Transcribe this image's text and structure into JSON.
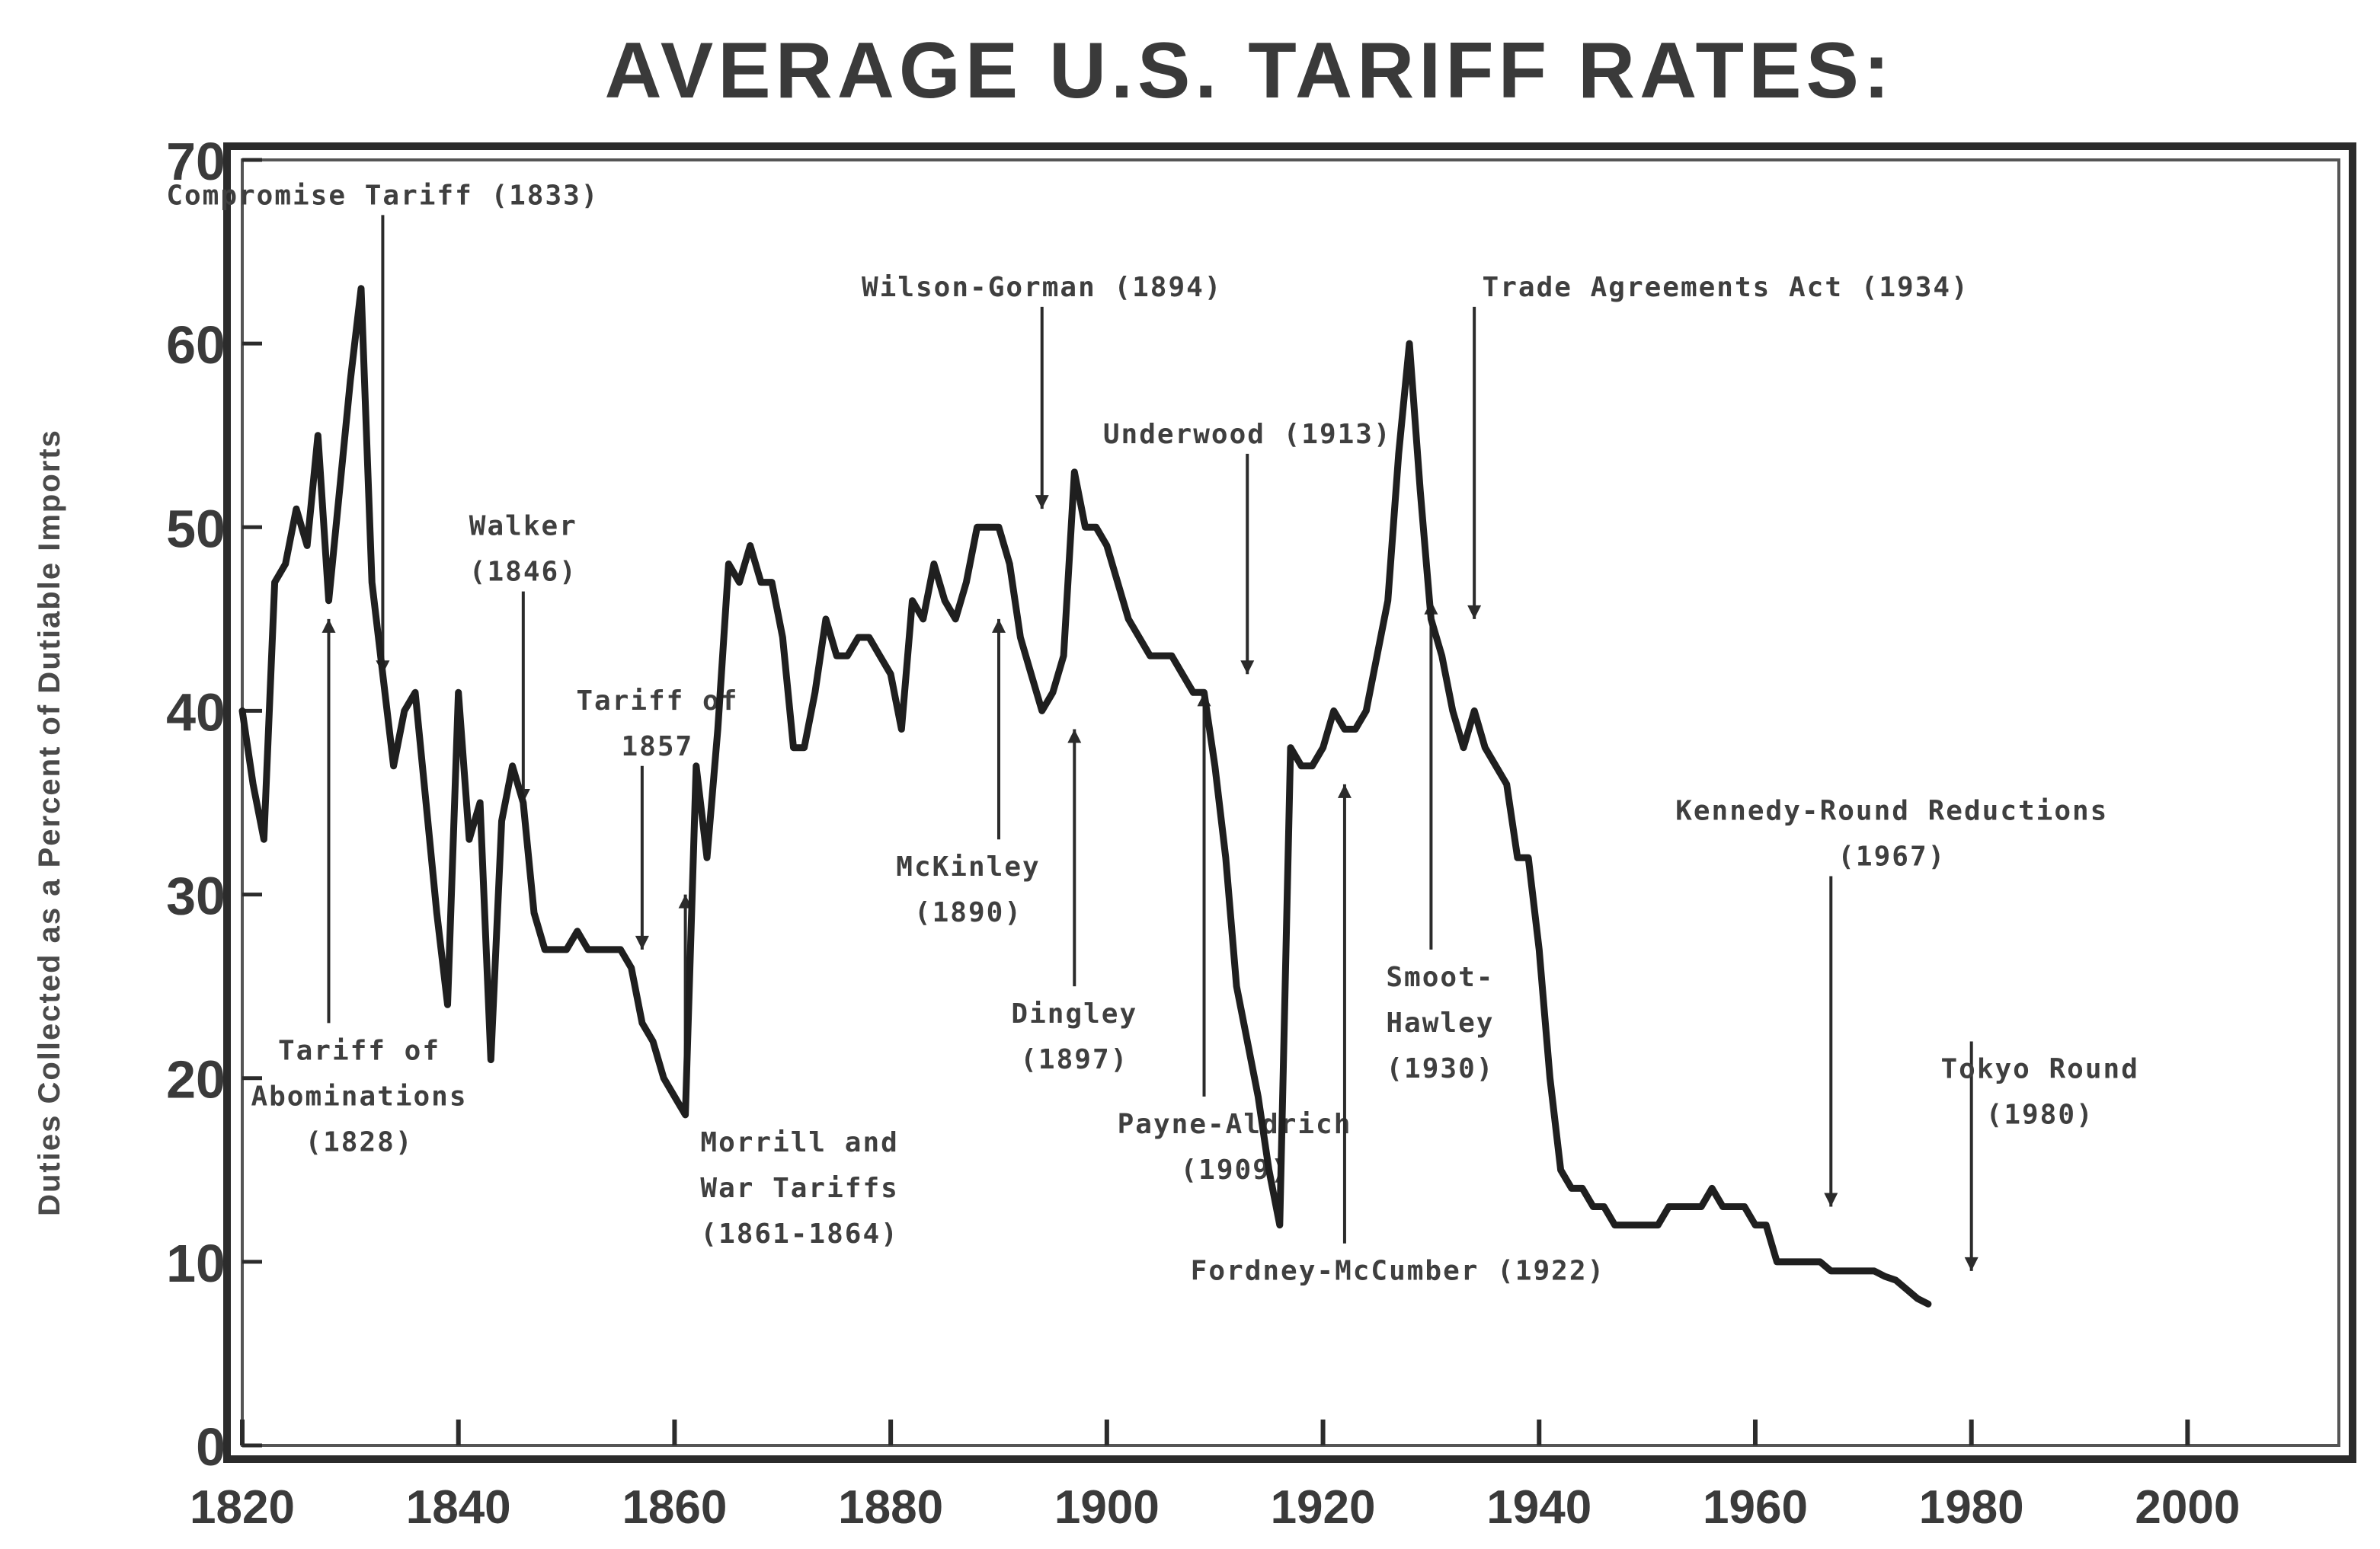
{
  "chart_data": {
    "type": "line",
    "title": "AVERAGE U.S. TARIFF RATES:",
    "ylabel": "Duties Collected as a Percent of Dutiable Imports",
    "xlabel": "",
    "xlim": [
      1820,
      2014
    ],
    "ylim": [
      0,
      70
    ],
    "x_ticks": [
      1820,
      1840,
      1860,
      1880,
      1900,
      1920,
      1940,
      1960,
      1980,
      2000
    ],
    "y_ticks": [
      0,
      10,
      20,
      30,
      40,
      50,
      60,
      70
    ],
    "grid": false,
    "legend": "none",
    "series": [
      {
        "points": [
          [
            1820,
            40
          ],
          [
            1821,
            36
          ],
          [
            1822,
            33
          ],
          [
            1823,
            47
          ],
          [
            1824,
            48
          ],
          [
            1825,
            51
          ],
          [
            1826,
            49
          ],
          [
            1827,
            55
          ],
          [
            1828,
            46
          ],
          [
            1829,
            52
          ],
          [
            1830,
            58
          ],
          [
            1831,
            63
          ],
          [
            1832,
            47
          ],
          [
            1833,
            42
          ],
          [
            1834,
            37
          ],
          [
            1835,
            40
          ],
          [
            1836,
            41
          ],
          [
            1837,
            35
          ],
          [
            1838,
            29
          ],
          [
            1839,
            24
          ],
          [
            1840,
            41
          ],
          [
            1841,
            33
          ],
          [
            1842,
            35
          ],
          [
            1843,
            21
          ],
          [
            1844,
            34
          ],
          [
            1845,
            37
          ],
          [
            1846,
            35
          ],
          [
            1847,
            29
          ],
          [
            1848,
            27
          ],
          [
            1849,
            27
          ],
          [
            1850,
            27
          ],
          [
            1851,
            28
          ],
          [
            1852,
            27
          ],
          [
            1853,
            27
          ],
          [
            1854,
            27
          ],
          [
            1855,
            27
          ],
          [
            1856,
            26
          ],
          [
            1857,
            23
          ],
          [
            1858,
            22
          ],
          [
            1859,
            20
          ],
          [
            1860,
            19
          ],
          [
            1861,
            18
          ],
          [
            1862,
            37
          ],
          [
            1863,
            32
          ],
          [
            1864,
            39
          ],
          [
            1865,
            48
          ],
          [
            1866,
            47
          ],
          [
            1867,
            49
          ],
          [
            1868,
            47
          ],
          [
            1869,
            47
          ],
          [
            1870,
            44
          ],
          [
            1871,
            38
          ],
          [
            1872,
            38
          ],
          [
            1873,
            41
          ],
          [
            1874,
            45
          ],
          [
            1875,
            43
          ],
          [
            1876,
            43
          ],
          [
            1877,
            44
          ],
          [
            1878,
            44
          ],
          [
            1879,
            43
          ],
          [
            1880,
            42
          ],
          [
            1881,
            39
          ],
          [
            1882,
            46
          ],
          [
            1883,
            45
          ],
          [
            1884,
            48
          ],
          [
            1885,
            46
          ],
          [
            1886,
            45
          ],
          [
            1887,
            47
          ],
          [
            1888,
            50
          ],
          [
            1889,
            50
          ],
          [
            1890,
            50
          ],
          [
            1891,
            48
          ],
          [
            1892,
            44
          ],
          [
            1893,
            42
          ],
          [
            1894,
            40
          ],
          [
            1895,
            41
          ],
          [
            1896,
            43
          ],
          [
            1897,
            53
          ],
          [
            1898,
            50
          ],
          [
            1899,
            50
          ],
          [
            1900,
            49
          ],
          [
            1901,
            47
          ],
          [
            1902,
            45
          ],
          [
            1903,
            44
          ],
          [
            1904,
            43
          ],
          [
            1905,
            43
          ],
          [
            1906,
            43
          ],
          [
            1907,
            42
          ],
          [
            1908,
            41
          ],
          [
            1909,
            41
          ],
          [
            1910,
            37
          ],
          [
            1911,
            32
          ],
          [
            1912,
            25
          ],
          [
            1913,
            22
          ],
          [
            1914,
            19
          ],
          [
            1915,
            15
          ],
          [
            1916,
            12
          ],
          [
            1917,
            38
          ],
          [
            1918,
            37
          ],
          [
            1919,
            37
          ],
          [
            1920,
            38
          ],
          [
            1921,
            40
          ],
          [
            1922,
            39
          ],
          [
            1923,
            39
          ],
          [
            1924,
            40
          ],
          [
            1925,
            43
          ],
          [
            1926,
            46
          ],
          [
            1927,
            54
          ],
          [
            1928,
            60
          ],
          [
            1929,
            52
          ],
          [
            1930,
            45
          ],
          [
            1931,
            43
          ],
          [
            1932,
            40
          ],
          [
            1933,
            38
          ],
          [
            1934,
            40
          ],
          [
            1935,
            38
          ],
          [
            1936,
            37
          ],
          [
            1937,
            36
          ],
          [
            1938,
            32
          ],
          [
            1939,
            32
          ],
          [
            1940,
            27
          ],
          [
            1941,
            20
          ],
          [
            1942,
            15
          ],
          [
            1943,
            14
          ],
          [
            1944,
            14
          ],
          [
            1945,
            13
          ],
          [
            1946,
            13
          ],
          [
            1947,
            12
          ],
          [
            1948,
            12
          ],
          [
            1949,
            12
          ],
          [
            1950,
            12
          ],
          [
            1951,
            12
          ],
          [
            1952,
            13
          ],
          [
            1953,
            13
          ],
          [
            1954,
            13
          ],
          [
            1955,
            13
          ],
          [
            1956,
            14
          ],
          [
            1957,
            13
          ],
          [
            1958,
            13
          ],
          [
            1959,
            13
          ],
          [
            1960,
            12
          ],
          [
            1961,
            12
          ],
          [
            1962,
            10
          ],
          [
            1963,
            10
          ],
          [
            1964,
            10
          ],
          [
            1965,
            10
          ],
          [
            1966,
            10
          ],
          [
            1967,
            9.5
          ],
          [
            1968,
            9.5
          ],
          [
            1969,
            9.5
          ],
          [
            1970,
            9.5
          ],
          [
            1971,
            9.5
          ],
          [
            1972,
            9.2
          ],
          [
            1973,
            9
          ],
          [
            1974,
            8.5
          ],
          [
            1975,
            8
          ],
          [
            1976,
            7.7
          ]
        ]
      }
    ],
    "annotations": [
      {
        "lines": [
          "Compromise Tariff (1833)"
        ],
        "x": 1833,
        "y_from": 42,
        "y_to": 67
      },
      {
        "lines": [
          "Tariff of",
          "Abominations",
          "(1828)"
        ],
        "x": 1828,
        "y_from": 45,
        "y_to": 23
      },
      {
        "lines": [
          "Walker",
          "(1846)"
        ],
        "x": 1846,
        "y_from": 35,
        "y_to": 46.5
      },
      {
        "lines": [
          "Tariff of",
          "1857"
        ],
        "x": 1857,
        "y_from": 27,
        "y_to": 37
      },
      {
        "lines": [
          "Morrill and",
          "War Tariffs",
          "(1861-1864)"
        ],
        "x": 1861,
        "y_from": 30,
        "y_to": 18
      },
      {
        "lines": [
          "Wilson-Gorman (1894)"
        ],
        "x": 1894,
        "y_from": 51,
        "y_to": 62
      },
      {
        "lines": [
          "McKinley",
          "(1890)"
        ],
        "x": 1890,
        "y_from": 45,
        "y_to": 33
      },
      {
        "lines": [
          "Dingley",
          "(1897)"
        ],
        "x": 1897,
        "y_from": 39,
        "y_to": 25
      },
      {
        "lines": [
          "Underwood (1913)"
        ],
        "x": 1913,
        "y_from": 42,
        "y_to": 54
      },
      {
        "lines": [
          "Payne-Aldrich",
          "(1909)"
        ],
        "x": 1909,
        "y_from": 41,
        "y_to": 19
      },
      {
        "lines": [
          "Fordney-McCumber (1922)"
        ],
        "x": 1922,
        "y_from": 36,
        "y_to": 11
      },
      {
        "lines": [
          "Trade Agreements Act (1934)"
        ],
        "x": 1934,
        "y_from": 45,
        "y_to": 62
      },
      {
        "lines": [
          "Smoot-",
          "Hawley",
          "(1930)"
        ],
        "x": 1930,
        "y_from": 46,
        "y_to": 27
      },
      {
        "lines": [
          "Kennedy-Round Reductions",
          "(1967)"
        ],
        "x": 1967,
        "y_from": 13,
        "y_to": 31
      },
      {
        "lines": [
          "Tokyo Round",
          "(1980)"
        ],
        "x": 1980,
        "y_from": 9.5,
        "y_to": 22
      }
    ]
  },
  "colors": {
    "line": "#1f1f1f",
    "frame": "#2b2b2b",
    "text": "#3a3a3a",
    "background": "#ffffff"
  }
}
